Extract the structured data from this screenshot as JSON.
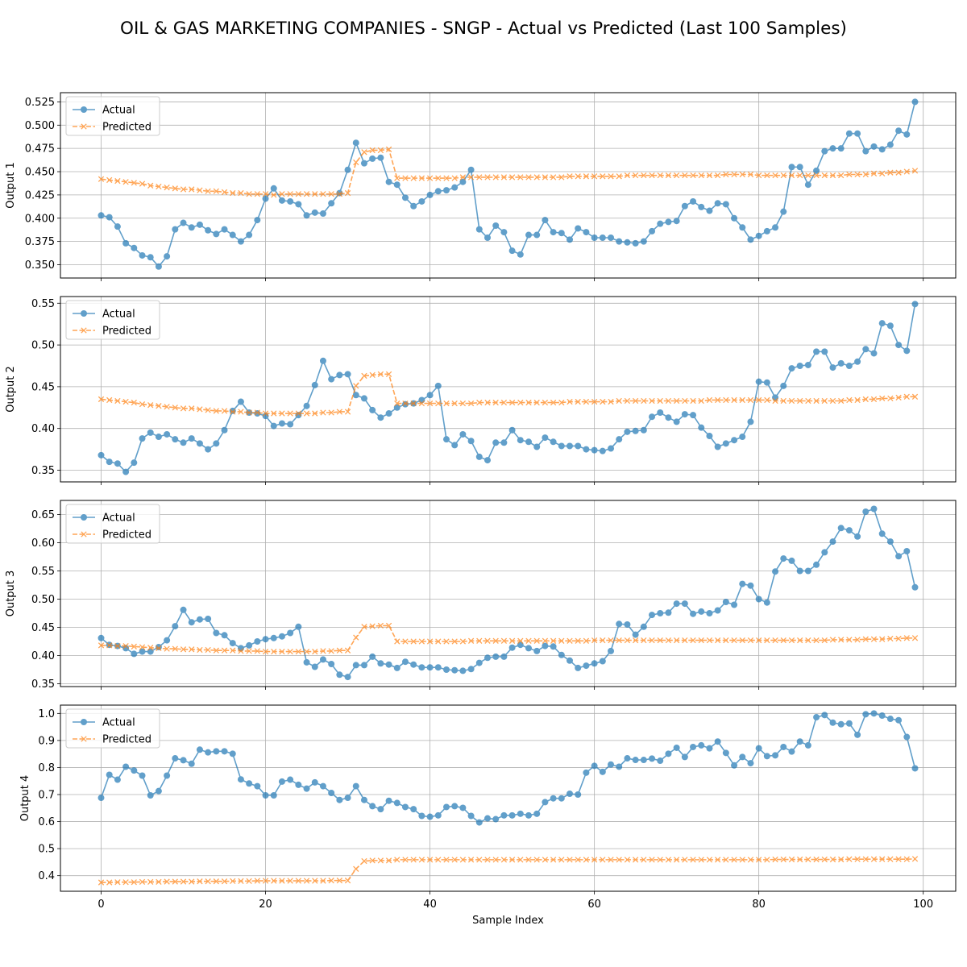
{
  "title": "OIL & GAS MARKETING COMPANIES - SNGP - Actual vs Predicted (Last 100 Samples)",
  "colors": {
    "actual": "#1f77b4",
    "predicted": "#ff7f0e",
    "grid": "#b0b0b0"
  },
  "chart_data": [
    {
      "type": "line",
      "ylabel": "Output 1",
      "xlabel": "",
      "xlim": [
        -4.95,
        103.95
      ],
      "ylim": [
        0.3357,
        0.5349
      ],
      "xticks": [
        0,
        20,
        40,
        60,
        80,
        100
      ],
      "yticks": [
        0.35,
        0.375,
        0.4,
        0.425,
        0.45,
        0.475,
        0.5,
        0.525
      ],
      "ytick_labels": [
        "0.350",
        "0.375",
        "0.400",
        "0.425",
        "0.450",
        "0.475",
        "0.500",
        "0.525"
      ],
      "grid": true,
      "legend": "upper left",
      "series": [
        {
          "name": "Actual",
          "marker": "circle",
          "values": [
            0.403,
            0.401,
            0.391,
            0.373,
            0.368,
            0.36,
            0.358,
            0.348,
            0.359,
            0.388,
            0.395,
            0.39,
            0.393,
            0.387,
            0.383,
            0.388,
            0.382,
            0.375,
            0.382,
            0.398,
            0.421,
            0.432,
            0.419,
            0.418,
            0.415,
            0.403,
            0.406,
            0.405,
            0.416,
            0.427,
            0.452,
            0.481,
            0.459,
            0.464,
            0.465,
            0.439,
            0.436,
            0.422,
            0.413,
            0.418,
            0.425,
            0.429,
            0.43,
            0.433,
            0.439,
            0.452,
            0.388,
            0.379,
            0.392,
            0.385,
            0.365,
            0.361,
            0.382,
            0.382,
            0.398,
            0.385,
            0.384,
            0.377,
            0.389,
            0.385,
            0.379,
            0.379,
            0.379,
            0.375,
            0.374,
            0.373,
            0.375,
            0.386,
            0.394,
            0.396,
            0.397,
            0.413,
            0.418,
            0.412,
            0.408,
            0.416,
            0.415,
            0.4,
            0.39,
            0.377,
            0.381,
            0.386,
            0.39,
            0.407,
            0.455,
            0.455,
            0.436,
            0.451,
            0.472,
            0.475,
            0.475,
            0.491,
            0.491,
            0.472,
            0.477,
            0.474,
            0.479,
            0.494,
            0.49,
            0.525
          ]
        },
        {
          "name": "Predicted",
          "marker": "x",
          "values": [
            0.442,
            0.441,
            0.44,
            0.439,
            0.438,
            0.437,
            0.435,
            0.434,
            0.433,
            0.432,
            0.431,
            0.431,
            0.43,
            0.429,
            0.429,
            0.428,
            0.427,
            0.427,
            0.426,
            0.426,
            0.426,
            0.425,
            0.426,
            0.426,
            0.426,
            0.426,
            0.426,
            0.426,
            0.426,
            0.426,
            0.427,
            0.46,
            0.471,
            0.473,
            0.473,
            0.474,
            0.443,
            0.443,
            0.443,
            0.443,
            0.443,
            0.443,
            0.443,
            0.443,
            0.444,
            0.444,
            0.444,
            0.444,
            0.444,
            0.444,
            0.444,
            0.444,
            0.444,
            0.444,
            0.444,
            0.444,
            0.444,
            0.445,
            0.445,
            0.445,
            0.445,
            0.445,
            0.445,
            0.445,
            0.446,
            0.446,
            0.446,
            0.446,
            0.446,
            0.446,
            0.446,
            0.446,
            0.446,
            0.446,
            0.446,
            0.446,
            0.447,
            0.447,
            0.447,
            0.447,
            0.446,
            0.446,
            0.446,
            0.446,
            0.446,
            0.446,
            0.446,
            0.446,
            0.446,
            0.446,
            0.446,
            0.447,
            0.447,
            0.447,
            0.448,
            0.448,
            0.449,
            0.449,
            0.45,
            0.451
          ]
        }
      ]
    },
    {
      "type": "line",
      "ylabel": "Output 2",
      "xlabel": "",
      "xlim": [
        -4.95,
        103.95
      ],
      "ylim": [
        0.336,
        0.558
      ],
      "xticks": [
        0,
        20,
        40,
        60,
        80,
        100
      ],
      "yticks": [
        0.35,
        0.4,
        0.45,
        0.5,
        0.55
      ],
      "ytick_labels": [
        "0.35",
        "0.40",
        "0.45",
        "0.50",
        "0.55"
      ],
      "grid": true,
      "legend": "upper left",
      "series": [
        {
          "name": "Actual",
          "marker": "circle",
          "values": [
            0.368,
            0.36,
            0.358,
            0.348,
            0.359,
            0.388,
            0.395,
            0.39,
            0.393,
            0.387,
            0.383,
            0.388,
            0.382,
            0.375,
            0.382,
            0.398,
            0.421,
            0.432,
            0.419,
            0.418,
            0.415,
            0.403,
            0.406,
            0.405,
            0.416,
            0.427,
            0.452,
            0.481,
            0.459,
            0.464,
            0.465,
            0.44,
            0.436,
            0.422,
            0.413,
            0.418,
            0.425,
            0.429,
            0.43,
            0.434,
            0.44,
            0.451,
            0.387,
            0.38,
            0.393,
            0.385,
            0.366,
            0.362,
            0.383,
            0.383,
            0.398,
            0.386,
            0.384,
            0.378,
            0.389,
            0.384,
            0.379,
            0.379,
            0.379,
            0.375,
            0.374,
            0.373,
            0.376,
            0.387,
            0.396,
            0.397,
            0.398,
            0.414,
            0.419,
            0.413,
            0.408,
            0.417,
            0.416,
            0.401,
            0.391,
            0.378,
            0.382,
            0.386,
            0.39,
            0.408,
            0.456,
            0.455,
            0.437,
            0.451,
            0.472,
            0.475,
            0.476,
            0.492,
            0.492,
            0.473,
            0.478,
            0.475,
            0.48,
            0.495,
            0.49,
            0.526,
            0.523,
            0.5,
            0.493,
            0.549
          ]
        },
        {
          "name": "Predicted",
          "marker": "x",
          "values": [
            0.435,
            0.434,
            0.433,
            0.432,
            0.431,
            0.429,
            0.428,
            0.427,
            0.426,
            0.425,
            0.424,
            0.424,
            0.423,
            0.422,
            0.421,
            0.421,
            0.42,
            0.42,
            0.419,
            0.419,
            0.418,
            0.418,
            0.418,
            0.418,
            0.418,
            0.418,
            0.418,
            0.419,
            0.419,
            0.42,
            0.42,
            0.451,
            0.463,
            0.464,
            0.465,
            0.465,
            0.43,
            0.43,
            0.43,
            0.43,
            0.43,
            0.43,
            0.43,
            0.43,
            0.43,
            0.43,
            0.431,
            0.431,
            0.431,
            0.431,
            0.431,
            0.431,
            0.431,
            0.431,
            0.431,
            0.431,
            0.431,
            0.432,
            0.432,
            0.432,
            0.432,
            0.432,
            0.432,
            0.433,
            0.433,
            0.433,
            0.433,
            0.433,
            0.433,
            0.433,
            0.433,
            0.433,
            0.433,
            0.433,
            0.434,
            0.434,
            0.434,
            0.434,
            0.434,
            0.434,
            0.434,
            0.434,
            0.433,
            0.433,
            0.433,
            0.433,
            0.433,
            0.433,
            0.433,
            0.433,
            0.433,
            0.434,
            0.434,
            0.435,
            0.435,
            0.436,
            0.436,
            0.437,
            0.438,
            0.438
          ]
        }
      ]
    },
    {
      "type": "line",
      "ylabel": "Output 3",
      "xlabel": "",
      "xlim": [
        -4.95,
        103.95
      ],
      "ylim": [
        0.345,
        0.675
      ],
      "xticks": [
        0,
        20,
        40,
        60,
        80,
        100
      ],
      "yticks": [
        0.35,
        0.4,
        0.45,
        0.5,
        0.55,
        0.6,
        0.65
      ],
      "ytick_labels": [
        "0.35",
        "0.40",
        "0.45",
        "0.50",
        "0.55",
        "0.60",
        "0.65"
      ],
      "grid": true,
      "legend": "upper left",
      "series": [
        {
          "name": "Actual",
          "marker": "circle",
          "values": [
            0.431,
            0.419,
            0.417,
            0.413,
            0.403,
            0.407,
            0.407,
            0.415,
            0.427,
            0.452,
            0.481,
            0.459,
            0.464,
            0.465,
            0.44,
            0.436,
            0.422,
            0.413,
            0.418,
            0.425,
            0.429,
            0.431,
            0.434,
            0.44,
            0.451,
            0.388,
            0.38,
            0.393,
            0.385,
            0.366,
            0.362,
            0.383,
            0.383,
            0.398,
            0.386,
            0.384,
            0.378,
            0.389,
            0.384,
            0.379,
            0.379,
            0.379,
            0.375,
            0.374,
            0.373,
            0.376,
            0.387,
            0.396,
            0.398,
            0.398,
            0.414,
            0.419,
            0.413,
            0.408,
            0.417,
            0.416,
            0.401,
            0.391,
            0.378,
            0.382,
            0.386,
            0.39,
            0.408,
            0.456,
            0.455,
            0.437,
            0.451,
            0.472,
            0.475,
            0.476,
            0.492,
            0.492,
            0.474,
            0.478,
            0.475,
            0.48,
            0.495,
            0.49,
            0.527,
            0.524,
            0.5,
            0.494,
            0.549,
            0.572,
            0.568,
            0.55,
            0.55,
            0.561,
            0.583,
            0.602,
            0.626,
            0.622,
            0.611,
            0.655,
            0.66,
            0.616,
            0.602,
            0.576,
            0.585,
            0.521
          ]
        },
        {
          "name": "Predicted",
          "marker": "x",
          "values": [
            0.418,
            0.418,
            0.417,
            0.417,
            0.416,
            0.415,
            0.414,
            0.413,
            0.412,
            0.412,
            0.411,
            0.411,
            0.41,
            0.41,
            0.409,
            0.409,
            0.409,
            0.408,
            0.408,
            0.408,
            0.407,
            0.407,
            0.407,
            0.407,
            0.407,
            0.407,
            0.407,
            0.408,
            0.408,
            0.409,
            0.409,
            0.432,
            0.451,
            0.452,
            0.453,
            0.453,
            0.425,
            0.425,
            0.425,
            0.425,
            0.425,
            0.425,
            0.425,
            0.425,
            0.425,
            0.426,
            0.426,
            0.426,
            0.426,
            0.426,
            0.426,
            0.426,
            0.426,
            0.426,
            0.426,
            0.426,
            0.426,
            0.426,
            0.426,
            0.426,
            0.427,
            0.427,
            0.427,
            0.427,
            0.427,
            0.427,
            0.427,
            0.427,
            0.427,
            0.427,
            0.427,
            0.427,
            0.427,
            0.427,
            0.427,
            0.427,
            0.427,
            0.427,
            0.427,
            0.427,
            0.427,
            0.427,
            0.427,
            0.427,
            0.427,
            0.427,
            0.427,
            0.427,
            0.427,
            0.428,
            0.428,
            0.428,
            0.428,
            0.429,
            0.429,
            0.429,
            0.43,
            0.43,
            0.431,
            0.431
          ]
        }
      ]
    },
    {
      "type": "line",
      "ylabel": "Output 4",
      "xlabel": "Sample Index",
      "xlim": [
        -4.95,
        103.95
      ],
      "ylim": [
        0.3424,
        1.0308
      ],
      "xticks": [
        0,
        20,
        40,
        60,
        80,
        100
      ],
      "yticks": [
        0.4,
        0.5,
        0.6,
        0.7,
        0.8,
        0.9,
        1.0
      ],
      "ytick_labels": [
        "0.4",
        "0.5",
        "0.6",
        "0.7",
        "0.8",
        "0.9",
        "1.0"
      ],
      "grid": true,
      "legend": "upper left",
      "series": [
        {
          "name": "Actual",
          "marker": "circle",
          "values": [
            0.688,
            0.773,
            0.755,
            0.803,
            0.789,
            0.77,
            0.697,
            0.713,
            0.77,
            0.834,
            0.827,
            0.814,
            0.866,
            0.856,
            0.86,
            0.86,
            0.851,
            0.756,
            0.741,
            0.731,
            0.697,
            0.697,
            0.748,
            0.755,
            0.736,
            0.722,
            0.745,
            0.731,
            0.706,
            0.68,
            0.688,
            0.731,
            0.68,
            0.657,
            0.646,
            0.677,
            0.669,
            0.654,
            0.646,
            0.621,
            0.618,
            0.623,
            0.654,
            0.657,
            0.651,
            0.621,
            0.597,
            0.612,
            0.609,
            0.623,
            0.623,
            0.629,
            0.623,
            0.629,
            0.672,
            0.686,
            0.686,
            0.703,
            0.7,
            0.781,
            0.806,
            0.784,
            0.811,
            0.803,
            0.834,
            0.828,
            0.828,
            0.833,
            0.825,
            0.851,
            0.873,
            0.839,
            0.876,
            0.882,
            0.871,
            0.896,
            0.854,
            0.808,
            0.839,
            0.816,
            0.871,
            0.842,
            0.845,
            0.876,
            0.859,
            0.896,
            0.882,
            0.986,
            0.994,
            0.966,
            0.96,
            0.963,
            0.921,
            0.997,
            1.0,
            0.992,
            0.98,
            0.975,
            0.913,
            0.797
          ]
        },
        {
          "name": "Predicted",
          "marker": "x",
          "values": [
            0.375,
            0.375,
            0.376,
            0.376,
            0.376,
            0.377,
            0.377,
            0.377,
            0.378,
            0.378,
            0.378,
            0.378,
            0.379,
            0.379,
            0.379,
            0.379,
            0.38,
            0.38,
            0.38,
            0.381,
            0.381,
            0.381,
            0.381,
            0.381,
            0.381,
            0.381,
            0.381,
            0.381,
            0.382,
            0.382,
            0.382,
            0.425,
            0.454,
            0.456,
            0.456,
            0.456,
            0.459,
            0.459,
            0.459,
            0.459,
            0.459,
            0.459,
            0.459,
            0.459,
            0.459,
            0.459,
            0.459,
            0.459,
            0.459,
            0.459,
            0.459,
            0.459,
            0.459,
            0.459,
            0.459,
            0.459,
            0.459,
            0.459,
            0.459,
            0.459,
            0.459,
            0.459,
            0.459,
            0.459,
            0.459,
            0.459,
            0.459,
            0.459,
            0.459,
            0.459,
            0.459,
            0.459,
            0.459,
            0.459,
            0.459,
            0.459,
            0.459,
            0.459,
            0.459,
            0.459,
            0.459,
            0.459,
            0.46,
            0.46,
            0.46,
            0.46,
            0.46,
            0.46,
            0.46,
            0.46,
            0.46,
            0.461,
            0.461,
            0.461,
            0.461,
            0.461,
            0.461,
            0.461,
            0.461,
            0.462
          ]
        }
      ]
    }
  ]
}
